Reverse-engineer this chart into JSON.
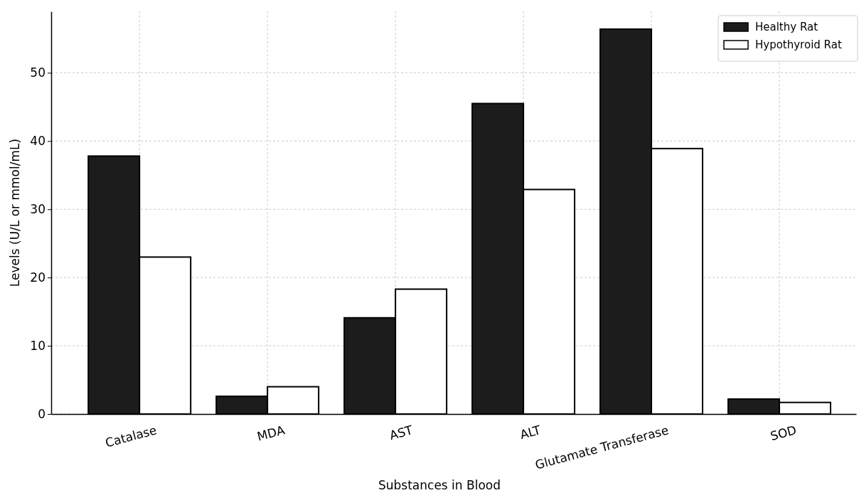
{
  "chart_data": {
    "type": "bar",
    "xlabel": "Substances in Blood",
    "ylabel": "Levels (U/L or mmol/mL)",
    "categories": [
      "Catalase",
      "MDA",
      "AST",
      "ALT",
      "Glutamate Transferase",
      "SOD"
    ],
    "series": [
      {
        "name": "Healthy Rat",
        "color": "#1c1c1c",
        "values": [
          37.8,
          2.6,
          14.1,
          45.5,
          56.4,
          2.2
        ]
      },
      {
        "name": "Hypothyroid Rat",
        "color": "#ffffff",
        "values": [
          23,
          4,
          18.3,
          32.9,
          38.9,
          1.7
        ]
      }
    ],
    "ylim": [
      0,
      59
    ],
    "yticks": [
      0,
      10,
      20,
      30,
      40,
      50
    ],
    "grid": true,
    "legend": "top right"
  }
}
